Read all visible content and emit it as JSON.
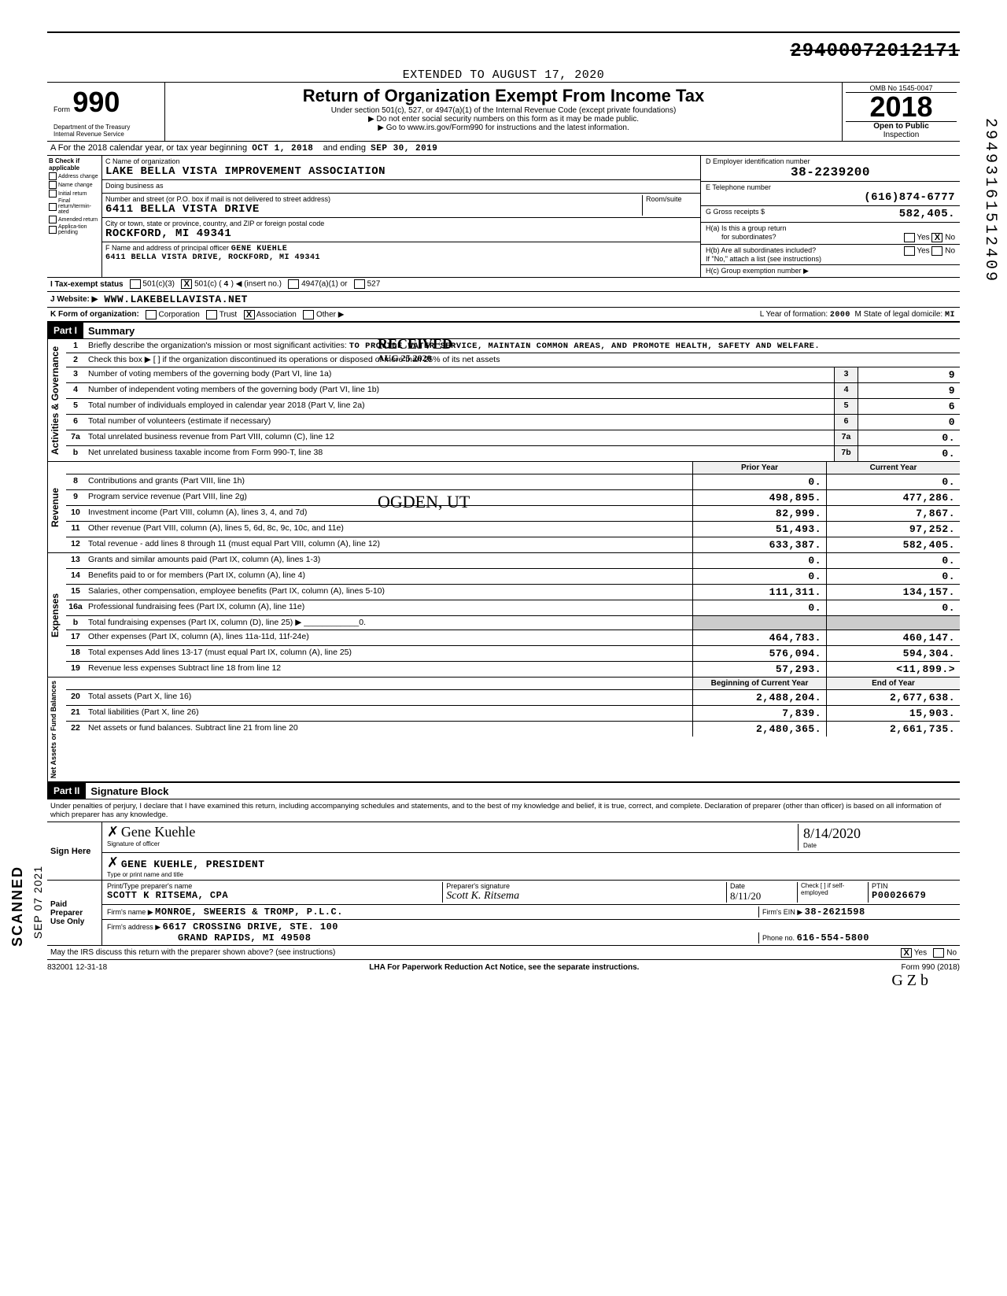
{
  "top_number": "29400072012171",
  "header": {
    "form_label": "Form",
    "form_number": "990",
    "dept": "Department of the Treasury",
    "irs": "Internal Revenue Service",
    "extended": "EXTENDED TO AUGUST 17, 2020",
    "title": "Return of Organization Exempt From Income Tax",
    "subtitle": "Under section 501(c), 527, or 4947(a)(1) of the Internal Revenue Code (except private foundations)",
    "arrow1": "▶ Do not enter social security numbers on this form as it may be made public.",
    "arrow2": "▶ Go to www.irs.gov/Form990 for instructions and the latest information.",
    "omb": "OMB No 1545-0047",
    "year": "2018",
    "open": "Open to Public",
    "inspection": "Inspection"
  },
  "row_a": {
    "label": "A For the 2018 calendar year, or tax year beginning",
    "begin": "OCT 1, 2018",
    "mid": "and ending",
    "end": "SEP 30, 2019"
  },
  "col_b": {
    "label": "B Check if applicable",
    "items": [
      "Address change",
      "Name change",
      "Initial return",
      "Final return/termin-ated",
      "Amended return",
      "Applica-tion pending"
    ]
  },
  "col_c": {
    "name_label": "C Name of organization",
    "name": "LAKE BELLA VISTA IMPROVEMENT ASSOCIATION",
    "dba_label": "Doing business as",
    "dba": "",
    "addr_label": "Number and street (or P.O. box if mail is not delivered to street address)",
    "room_label": "Room/suite",
    "addr": "6411 BELLA VISTA DRIVE",
    "city_label": "City or town, state or province, country, and ZIP or foreign postal code",
    "city": "ROCKFORD, MI  49341",
    "f_label": "F Name and address of principal officer",
    "f_name": "GENE KUEHLE",
    "f_addr": "6411 BELLA VISTA DRIVE, ROCKFORD, MI  49341"
  },
  "col_de": {
    "d_label": "D Employer identification number",
    "d_val": "38-2239200",
    "e_label": "E Telephone number",
    "e_val": "(616)874-6777",
    "g_label": "G Gross receipts $",
    "g_val": "582,405.",
    "ha_label": "H(a) Is this a group return",
    "ha_label2": "for subordinates?",
    "ha_yesno": "Yes [X] No",
    "hb_label": "H(b) Are all subordinates included?",
    "hb_yesno": "Yes [ ] No",
    "hb_note": "If \"No,\" attach a list (see instructions)",
    "hc_label": "H(c) Group exemption number ▶"
  },
  "row_i": {
    "label": "I Tax-exempt status",
    "opts": "501(c)(3)  [X] 501(c) ( 4 ) ◀ (insert no.)  [ ] 4947(a)(1) or  [ ] 527"
  },
  "row_j": {
    "label": "J Website: ▶",
    "val": "WWW.LAKEBELLAVISTA.NET"
  },
  "row_k": {
    "label": "K Form of organization:",
    "opts": "[ ] Corporation  [ ] Trust  [X] Association  [ ] Other ▶",
    "l_label": "L Year of formation:",
    "l_val": "2000",
    "m_label": "M State of legal domicile:",
    "m_val": "MI"
  },
  "part1": {
    "header": "Part I",
    "title": "Summary",
    "line1_label": "Briefly describe the organization's mission or most significant activities:",
    "line1_val": "TO PROVIDE WATER SERVICE, MAINTAIN COMMON AREAS, AND PROMOTE HEALTH, SAFETY AND WELFARE.",
    "line2": "Check this box ▶ [ ] if the organization discontinued its operations or disposed of more than 25% of its net assets",
    "rows_ag": [
      {
        "n": "3",
        "d": "Number of voting members of the governing body (Part VI, line 1a)",
        "cn": "3",
        "v": "9"
      },
      {
        "n": "4",
        "d": "Number of independent voting members of the governing body (Part VI, line 1b)",
        "cn": "4",
        "v": "9"
      },
      {
        "n": "5",
        "d": "Total number of individuals employed in calendar year 2018 (Part V, line 2a)",
        "cn": "5",
        "v": "6"
      },
      {
        "n": "6",
        "d": "Total number of volunteers (estimate if necessary)",
        "cn": "6",
        "v": "0"
      },
      {
        "n": "7a",
        "d": "Total unrelated business revenue from Part VIII, column (C), line 12",
        "cn": "7a",
        "v": "0."
      },
      {
        "n": " b",
        "d": "Net unrelated business taxable income from Form 990-T, line 38",
        "cn": "7b",
        "v": "0."
      }
    ],
    "col_headers": {
      "prior": "Prior Year",
      "current": "Current Year"
    },
    "rows_rev": [
      {
        "n": "8",
        "d": "Contributions and grants (Part VIII, line 1h)",
        "p": "0.",
        "c": "0."
      },
      {
        "n": "9",
        "d": "Program service revenue (Part VIII, line 2g)",
        "p": "498,895.",
        "c": "477,286."
      },
      {
        "n": "10",
        "d": "Investment income (Part VIII, column (A), lines 3, 4, and 7d)",
        "p": "82,999.",
        "c": "7,867."
      },
      {
        "n": "11",
        "d": "Other revenue (Part VIII, column (A), lines 5, 6d, 8c, 9c, 10c, and 11e)",
        "p": "51,493.",
        "c": "97,252."
      },
      {
        "n": "12",
        "d": "Total revenue - add lines 8 through 11 (must equal Part VIII, column (A), line 12)",
        "p": "633,387.",
        "c": "582,405."
      }
    ],
    "rows_exp": [
      {
        "n": "13",
        "d": "Grants and similar amounts paid (Part IX, column (A), lines 1-3)",
        "p": "0.",
        "c": "0."
      },
      {
        "n": "14",
        "d": "Benefits paid to or for members (Part IX, column (A), line 4)",
        "p": "0.",
        "c": "0."
      },
      {
        "n": "15",
        "d": "Salaries, other compensation, employee benefits (Part IX, column (A), lines 5-10)",
        "p": "111,311.",
        "c": "134,157."
      },
      {
        "n": "16a",
        "d": "Professional fundraising fees (Part IX, column (A), line 11e)",
        "p": "0.",
        "c": "0."
      },
      {
        "n": " b",
        "d": "Total fundraising expenses (Part IX, column (D), line 25) ▶ ____________0.",
        "p": "",
        "c": ""
      },
      {
        "n": "17",
        "d": "Other expenses (Part IX, column (A), lines 11a-11d, 11f-24e)",
        "p": "464,783.",
        "c": "460,147."
      },
      {
        "n": "18",
        "d": "Total expenses Add lines 13-17 (must equal Part IX, column (A), line 25)",
        "p": "576,094.",
        "c": "594,304."
      },
      {
        "n": "19",
        "d": "Revenue less expenses Subtract line 18 from line 12",
        "p": "57,293.",
        "c": "<11,899.>"
      }
    ],
    "col_headers2": {
      "begin": "Beginning of Current Year",
      "end": "End of Year"
    },
    "rows_na": [
      {
        "n": "20",
        "d": "Total assets (Part X, line 16)",
        "p": "2,488,204.",
        "c": "2,677,638."
      },
      {
        "n": "21",
        "d": "Total liabilities (Part X, line 26)",
        "p": "7,839.",
        "c": "15,903."
      },
      {
        "n": "22",
        "d": "Net assets or fund balances. Subtract line 21 from line 20",
        "p": "2,480,365.",
        "c": "2,661,735."
      }
    ],
    "vert_ag": "Activities & Governance",
    "vert_rev": "Revenue",
    "vert_exp": "Expenses",
    "vert_na": "Net Assets or Fund Balances"
  },
  "part2": {
    "header": "Part II",
    "title": "Signature Block",
    "perjury": "Under penalties of perjury, I declare that I have examined this return, including accompanying schedules and statements, and to the best of my knowledge and belief, it is true, correct, and complete. Declaration of preparer (other than officer) is based on all information of which preparer has any knowledge.",
    "sign_here": "Sign Here",
    "sig_officer_label": "Signature of officer",
    "sig_date": "8/14/2020",
    "officer_name": "GENE KUEHLE, PRESIDENT",
    "officer_name_label": "Type or print name and title",
    "paid": "Paid Preparer Use Only",
    "prep_name_label": "Print/Type preparer's name",
    "prep_name": "SCOTT K RITSEMA, CPA",
    "prep_sig_label": "Preparer's signature",
    "prep_sig": "Scott K. Ritsema",
    "prep_date_label": "Date",
    "prep_date": "8/11/20",
    "prep_check": "Check [ ] if self-employed",
    "ptin_label": "PTIN",
    "ptin": "P00026679",
    "firm_name_label": "Firm's name ▶",
    "firm_name": "MONROE, SWEERIS & TROMP, P.L.C.",
    "firm_ein_label": "Firm's EIN ▶",
    "firm_ein": "38-2621598",
    "firm_addr_label": "Firm's address ▶",
    "firm_addr1": "6617 CROSSING DRIVE, STE. 100",
    "firm_addr2": "GRAND RAPIDS, MI 49508",
    "firm_phone_label": "Phone no.",
    "firm_phone": "616-554-5800",
    "discuss": "May the IRS discuss this return with the preparer shown above? (see instructions)",
    "discuss_yesno": "[X] Yes  [ ] No"
  },
  "footer": {
    "left": "832001 12-31-18",
    "mid": "LHA  For Paperwork Reduction Act Notice, see the separate instructions.",
    "right": "Form 990 (2018)",
    "initials": "G Z b"
  },
  "stamps": {
    "received": "RECEIVED",
    "received_date": "AUG 25 2020",
    "ogden": "OGDEN, UT",
    "scanned": "SCANNED",
    "scan_date": "SEP 07 2021",
    "side_code": "29493161512409"
  }
}
